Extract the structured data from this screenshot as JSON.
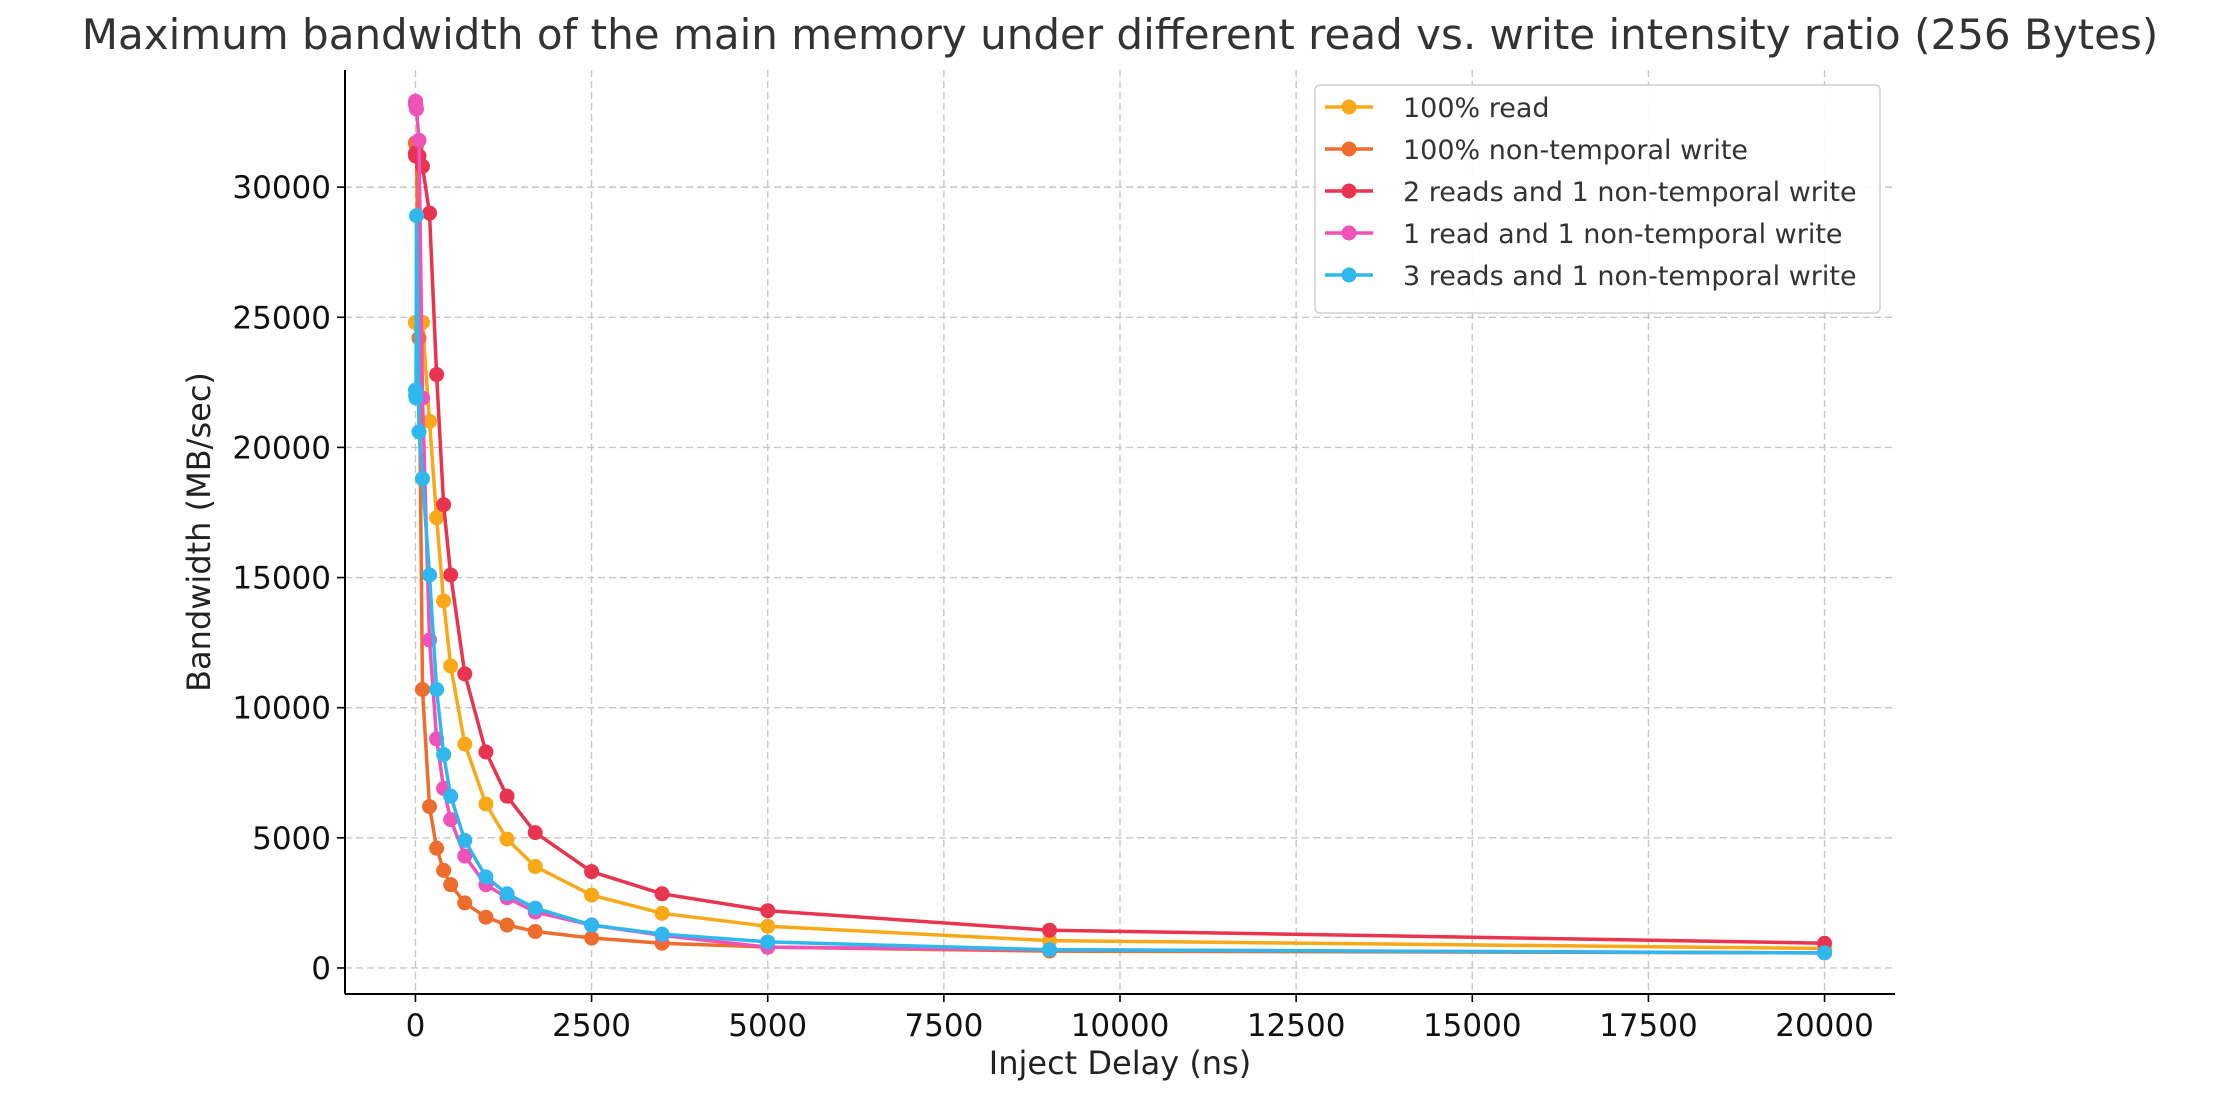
{
  "chart_data": {
    "type": "line",
    "title": "Maximum bandwidth of the main memory under different read vs. write intensity ratio (256 Bytes)",
    "xlabel": "Inject Delay (ns)",
    "ylabel": "Bandwidth (MB/sec)",
    "xlim": [
      -1000,
      21000
    ],
    "ylim": [
      -1000,
      34500
    ],
    "xticks": [
      0,
      2500,
      5000,
      7500,
      10000,
      12500,
      15000,
      17500,
      20000
    ],
    "yticks": [
      0,
      5000,
      10000,
      15000,
      20000,
      25000,
      30000
    ],
    "grid": true,
    "legend_position": "top-right",
    "x": [
      0,
      2,
      8,
      15,
      50,
      100,
      200,
      300,
      400,
      500,
      700,
      1000,
      1300,
      1700,
      2500,
      3500,
      5000,
      9000,
      20000
    ],
    "series": [
      {
        "name": "100% read",
        "color": "#F9A818",
        "values": [
          24800,
          24800,
          24800,
          24800,
          24700,
          24800,
          21000,
          17300,
          14100,
          11600,
          8600,
          6300,
          4950,
          3900,
          2800,
          2100,
          1600,
          1050,
          750
        ]
      },
      {
        "name": "100% non-temporal write",
        "color": "#EE6C2C",
        "values": [
          31700,
          31700,
          31700,
          31600,
          24200,
          10700,
          6200,
          4600,
          3750,
          3200,
          2500,
          1950,
          1650,
          1400,
          1150,
          950,
          800,
          650,
          580
        ]
      },
      {
        "name": "2 reads and 1 non-temporal write",
        "color": "#E8344E",
        "values": [
          31300,
          31200,
          31300,
          31300,
          31200,
          30800,
          29000,
          22800,
          17800,
          15100,
          11300,
          8300,
          6600,
          5200,
          3700,
          2850,
          2200,
          1450,
          950
        ]
      },
      {
        "name": "1 read and 1 non-temporal write",
        "color": "#EF52B9",
        "values": [
          33200,
          33300,
          33100,
          33000,
          31800,
          21900,
          12600,
          8800,
          6900,
          5700,
          4300,
          3200,
          2700,
          2150,
          1650,
          1250,
          800,
          700,
          580
        ]
      },
      {
        "name": "3 reads and 1 non-temporal write",
        "color": "#2EB8EE",
        "values": [
          22200,
          22000,
          21900,
          28900,
          20600,
          18800,
          15100,
          10700,
          8200,
          6600,
          4900,
          3500,
          2850,
          2300,
          1650,
          1300,
          1000,
          700,
          580
        ]
      }
    ]
  }
}
